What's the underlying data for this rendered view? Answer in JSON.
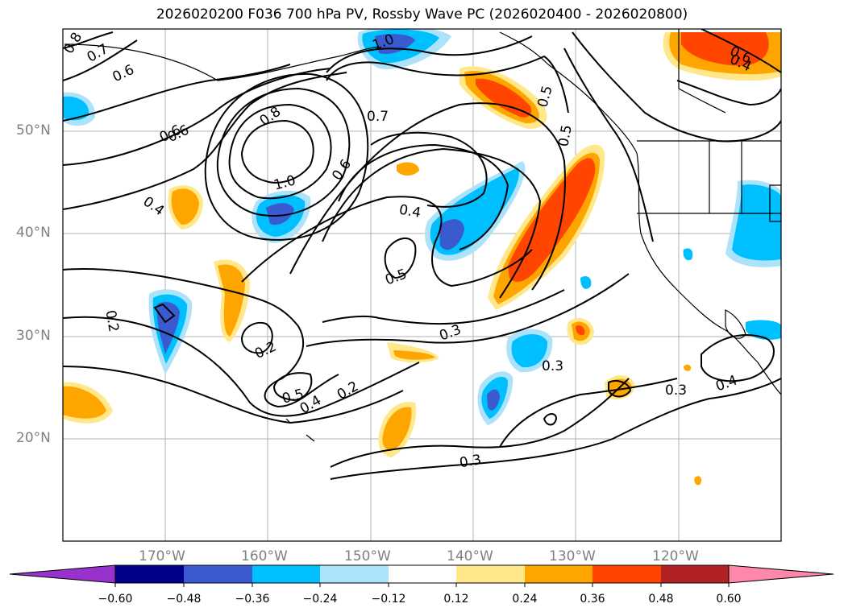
{
  "title": "2026020200 F036 700 hPa PV, Rossby Wave PC (2026020400 - 2026020800)",
  "map": {
    "latitude_labels": [
      "50°N",
      "40°N",
      "30°N",
      "20°N"
    ],
    "longitude_labels": [
      "170°W",
      "160°W",
      "150°W",
      "140°W",
      "130°W",
      "120°W"
    ],
    "contour_labels": [
      "0.8",
      "0.7",
      "0.6",
      "1.0",
      "0.6",
      "0.8",
      "0.7",
      "0.6",
      "0.6",
      "1.0",
      "0.4",
      "0.5",
      "0.4",
      "0.5",
      "0.4",
      "0.5",
      "0.6",
      "0.2",
      "0.2",
      "0.5",
      "0.4",
      "0.2",
      "0.3",
      "0.3",
      "0.3",
      "0.4",
      "0.3"
    ]
  },
  "colorbar": {
    "labels": [
      "−0.60",
      "−0.48",
      "−0.36",
      "−0.24",
      "−0.12",
      "0.12",
      "0.24",
      "0.36",
      "0.48",
      "0.60"
    ],
    "colors": [
      "#9932CC",
      "#00008B",
      "#3A5BCF",
      "#00BFFF",
      "#ADE3FA",
      "#FFFFFF",
      "#FFE78A",
      "#FFA500",
      "#FF4500",
      "#B22222",
      "#FF88AA"
    ]
  }
}
